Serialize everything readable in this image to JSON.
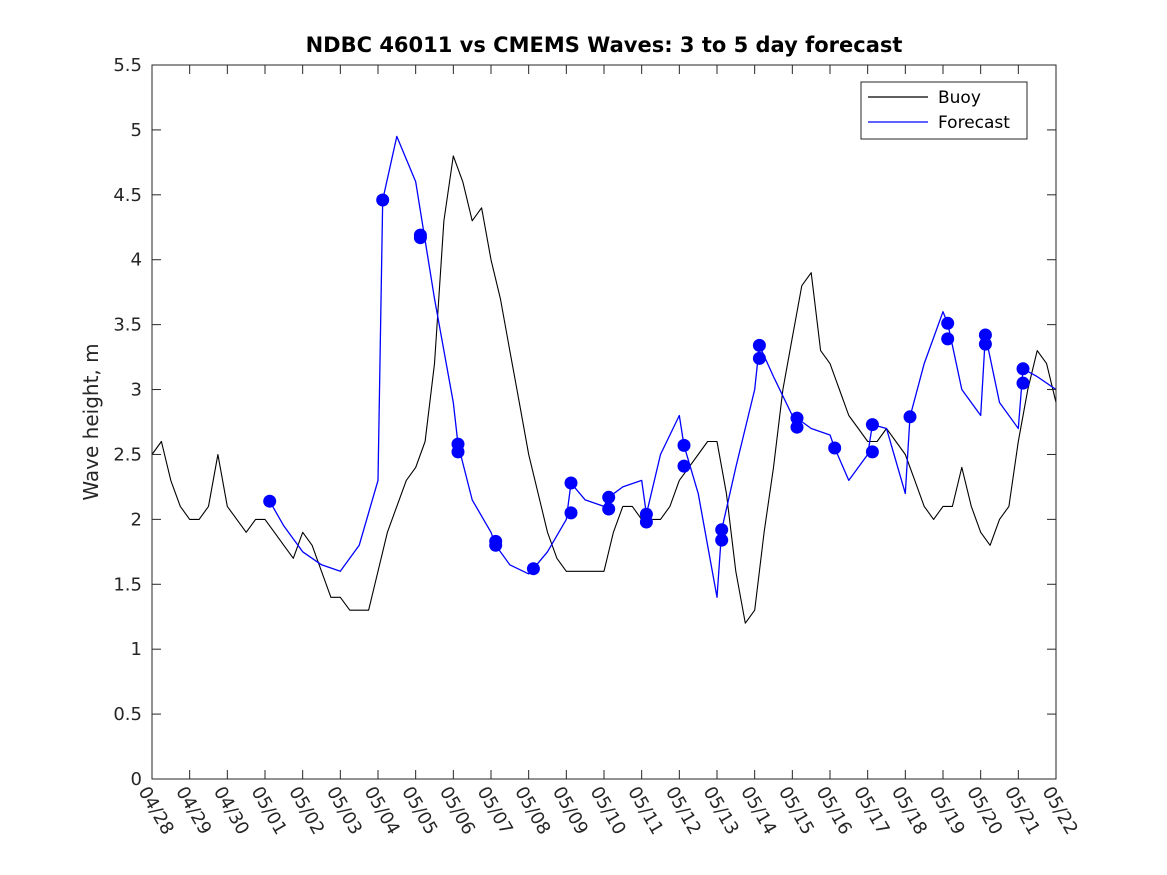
{
  "chart_data": {
    "type": "line",
    "title": "NDBC 46011 vs CMEMS Waves: 3 to 5 day forecast",
    "xlabel": "",
    "ylabel": "Wave height, m",
    "ylim": [
      0,
      5.5
    ],
    "yticks": [
      "0",
      "0.5",
      "1",
      "1.5",
      "2",
      "2.5",
      "3",
      "3.5",
      "4",
      "4.5",
      "5",
      "5.5"
    ],
    "xlim": [
      "04/28",
      "05/22"
    ],
    "xticks": [
      "04/28",
      "04/29",
      "04/30",
      "05/01",
      "05/02",
      "05/03",
      "05/04",
      "05/05",
      "05/06",
      "05/07",
      "05/08",
      "05/09",
      "05/10",
      "05/11",
      "05/12",
      "05/13",
      "05/14",
      "05/15",
      "05/16",
      "05/17",
      "05/18",
      "05/19",
      "05/20",
      "05/21",
      "05/22"
    ],
    "grid": false,
    "legend_position": "top-right",
    "colors": {
      "buoy": "#000000",
      "forecast": "#0000ff"
    },
    "series": [
      {
        "name": "Buoy",
        "x": [
          "04/28 00:00",
          "04/28 06:00",
          "04/28 12:00",
          "04/28 18:00",
          "04/29 00:00",
          "04/29 06:00",
          "04/29 12:00",
          "04/29 18:00",
          "04/30 00:00",
          "04/30 06:00",
          "04/30 12:00",
          "04/30 18:00",
          "05/01 00:00",
          "05/01 06:00",
          "05/01 12:00",
          "05/01 18:00",
          "05/02 00:00",
          "05/02 06:00",
          "05/02 12:00",
          "05/02 18:00",
          "05/03 00:00",
          "05/03 06:00",
          "05/03 12:00",
          "05/03 18:00",
          "05/04 00:00",
          "05/04 06:00",
          "05/04 12:00",
          "05/04 18:00",
          "05/05 00:00",
          "05/05 06:00",
          "05/05 12:00",
          "05/05 18:00",
          "05/06 00:00",
          "05/06 06:00",
          "05/06 12:00",
          "05/06 18:00",
          "05/07 00:00",
          "05/07 06:00",
          "05/07 12:00",
          "05/07 18:00",
          "05/08 00:00",
          "05/08 06:00",
          "05/08 12:00",
          "05/08 18:00",
          "05/09 00:00",
          "05/09 06:00",
          "05/09 12:00",
          "05/09 18:00",
          "05/10 00:00",
          "05/10 06:00",
          "05/10 12:00",
          "05/10 18:00",
          "05/11 00:00",
          "05/11 06:00",
          "05/11 12:00",
          "05/11 18:00",
          "05/12 00:00",
          "05/12 06:00",
          "05/12 12:00",
          "05/12 18:00",
          "05/13 00:00",
          "05/13 06:00",
          "05/13 12:00",
          "05/13 18:00",
          "05/14 00:00",
          "05/14 06:00",
          "05/14 12:00",
          "05/14 18:00",
          "05/15 00:00",
          "05/15 06:00",
          "05/15 12:00",
          "05/15 18:00",
          "05/16 00:00",
          "05/16 06:00",
          "05/16 12:00",
          "05/16 18:00",
          "05/17 00:00",
          "05/17 06:00",
          "05/17 12:00",
          "05/17 18:00",
          "05/18 00:00",
          "05/18 06:00",
          "05/18 12:00",
          "05/18 18:00",
          "05/19 00:00",
          "05/19 06:00",
          "05/19 12:00",
          "05/19 18:00",
          "05/20 00:00",
          "05/20 06:00",
          "05/20 12:00",
          "05/20 18:00",
          "05/21 00:00",
          "05/21 06:00",
          "05/21 12:00",
          "05/21 18:00",
          "05/22 00:00"
        ],
        "values": [
          2.5,
          2.6,
          2.3,
          2.1,
          2.0,
          2.0,
          2.1,
          2.5,
          2.1,
          2.0,
          1.9,
          2.0,
          2.0,
          1.9,
          1.8,
          1.7,
          1.9,
          1.8,
          1.6,
          1.4,
          1.4,
          1.3,
          1.3,
          1.3,
          1.6,
          1.9,
          2.1,
          2.3,
          2.4,
          2.6,
          3.2,
          4.3,
          4.8,
          4.6,
          4.3,
          4.4,
          4.0,
          3.7,
          3.3,
          2.9,
          2.5,
          2.2,
          1.9,
          1.7,
          1.6,
          1.6,
          1.6,
          1.6,
          1.6,
          1.9,
          2.1,
          2.1,
          2.0,
          2.0,
          2.0,
          2.1,
          2.3,
          2.4,
          2.5,
          2.6,
          2.6,
          2.2,
          1.6,
          1.2,
          1.3,
          1.9,
          2.4,
          3.0,
          3.4,
          3.8,
          3.9,
          3.3,
          3.2,
          3.0,
          2.8,
          2.7,
          2.6,
          2.6,
          2.7,
          2.6,
          2.5,
          2.3,
          2.1,
          2.0,
          2.1,
          2.1,
          2.4,
          2.1,
          1.9,
          1.8,
          2.0,
          2.1,
          2.6,
          3.0,
          3.3,
          3.2,
          2.9
        ]
      },
      {
        "name": "Forecast",
        "x": [
          "05/01 03:00",
          "05/01 12:00",
          "05/02 00:00",
          "05/02 12:00",
          "05/03 00:00",
          "05/03 12:00",
          "05/04 00:00",
          "05/04 03:00",
          "05/04 12:00",
          "05/05 00:00",
          "05/05 12:00",
          "05/06 00:00",
          "05/06 03:00",
          "05/06 12:00",
          "05/07 00:00",
          "05/07 03:00",
          "05/07 12:00",
          "05/08 00:00",
          "05/08 03:00",
          "05/08 12:00",
          "05/09 00:00",
          "05/09 03:00",
          "05/09 12:00",
          "05/10 00:00",
          "05/10 03:00",
          "05/10 12:00",
          "05/11 00:00",
          "05/11 03:00",
          "05/11 12:00",
          "05/12 00:00",
          "05/12 03:00",
          "05/12 12:00",
          "05/13 00:00",
          "05/13 03:00",
          "05/13 12:00",
          "05/14 00:00",
          "05/14 03:00",
          "05/14 12:00",
          "05/15 00:00",
          "05/15 03:00",
          "05/15 12:00",
          "05/16 00:00",
          "05/16 03:00",
          "05/16 12:00",
          "05/17 00:00",
          "05/17 03:00",
          "05/17 12:00",
          "05/18 00:00",
          "05/18 03:00",
          "05/18 12:00",
          "05/19 00:00",
          "05/19 03:00",
          "05/19 12:00",
          "05/20 00:00",
          "05/20 03:00",
          "05/20 12:00",
          "05/21 00:00",
          "05/21 03:00",
          "05/21 12:00",
          "05/22 00:00"
        ],
        "values": [
          2.14,
          1.95,
          1.75,
          1.65,
          1.6,
          1.8,
          2.3,
          4.46,
          4.95,
          4.6,
          3.7,
          2.9,
          2.58,
          2.15,
          1.9,
          1.8,
          1.65,
          1.58,
          1.62,
          1.75,
          2.0,
          2.28,
          2.15,
          2.1,
          2.17,
          2.25,
          2.3,
          2.04,
          2.5,
          2.8,
          2.57,
          2.2,
          1.4,
          1.92,
          2.4,
          3.0,
          3.34,
          3.1,
          2.8,
          2.78,
          2.7,
          2.65,
          2.55,
          2.3,
          2.5,
          2.73,
          2.7,
          2.2,
          2.79,
          3.2,
          3.6,
          3.51,
          3.0,
          2.8,
          3.42,
          2.9,
          2.7,
          3.16,
          3.1,
          3.0
        ]
      }
    ],
    "markers": {
      "series": "Forecast",
      "x": [
        "05/01 03:00",
        "05/04 03:00",
        "05/05 03:00",
        "05/05 03:00",
        "05/06 03:00",
        "05/06 03:00",
        "05/07 03:00",
        "05/07 03:00",
        "05/08 03:00",
        "05/09 03:00",
        "05/09 03:00",
        "05/10 03:00",
        "05/10 03:00",
        "05/11 03:00",
        "05/11 03:00",
        "05/12 03:00",
        "05/12 03:00",
        "05/13 03:00",
        "05/13 03:00",
        "05/14 03:00",
        "05/14 03:00",
        "05/15 03:00",
        "05/15 03:00",
        "05/16 03:00",
        "05/17 03:00",
        "05/17 03:00",
        "05/18 03:00",
        "05/19 03:00",
        "05/19 03:00",
        "05/20 03:00",
        "05/20 03:00",
        "05/21 03:00",
        "05/21 03:00"
      ],
      "values": [
        2.14,
        4.46,
        4.19,
        4.17,
        2.58,
        2.52,
        1.83,
        1.8,
        1.62,
        2.28,
        2.05,
        2.17,
        2.08,
        2.04,
        1.98,
        2.57,
        2.41,
        1.92,
        1.84,
        3.34,
        3.24,
        2.78,
        2.71,
        2.55,
        2.73,
        2.52,
        2.79,
        3.51,
        3.39,
        3.42,
        3.35,
        3.16,
        3.05
      ]
    }
  }
}
